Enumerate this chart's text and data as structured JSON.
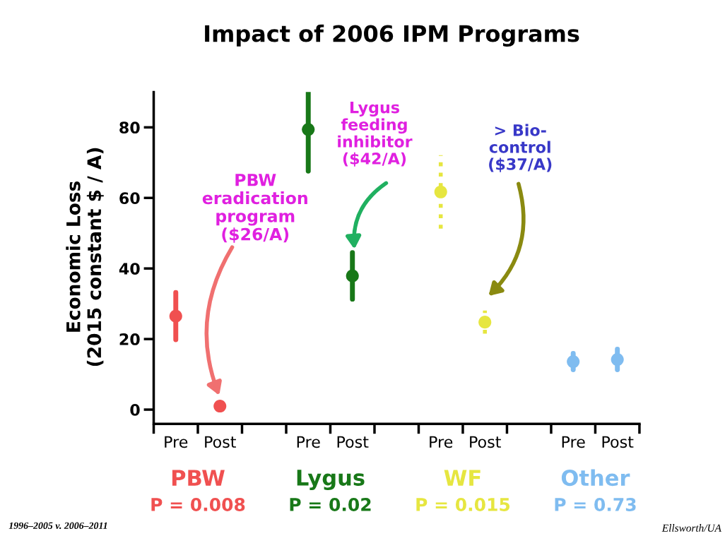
{
  "chart_data": {
    "type": "scatter",
    "title": "Impact of 2006 IPM Programs",
    "ylabel": "Economic Loss\n(2015 constant $ / A)",
    "categories": [
      "Pre",
      "Post",
      null,
      "Pre",
      "Post",
      null,
      "Pre",
      "Post",
      null,
      "Pre",
      "Post"
    ],
    "series": [
      {
        "name": "PBW",
        "color": "#f05050",
        "values": [
          26.5,
          1,
          null,
          null,
          null,
          null,
          null,
          null,
          null,
          null,
          null
        ],
        "errors": [
          6.7,
          null,
          null,
          null,
          null,
          null,
          null,
          null,
          null,
          null,
          null
        ],
        "line_style": "solid"
      },
      {
        "name": "Lygus",
        "color": "#187818",
        "values": [
          null,
          null,
          null,
          79.4,
          37.9,
          null,
          null,
          null,
          null,
          null,
          null
        ],
        "errors": [
          null,
          null,
          null,
          11.8,
          6.6,
          null,
          null,
          null,
          null,
          null,
          null
        ],
        "line_style": "solid"
      },
      {
        "name": "WF",
        "color": "#e6e640",
        "values": [
          null,
          null,
          null,
          null,
          null,
          null,
          61.7,
          24.8,
          null,
          null,
          null
        ],
        "errors": [
          null,
          null,
          null,
          null,
          null,
          null,
          10.4,
          3.3,
          null,
          null,
          null
        ],
        "line_style": "dotted"
      },
      {
        "name": "Other",
        "color": "#7fbcf0",
        "values": [
          null,
          null,
          null,
          null,
          null,
          null,
          null,
          null,
          null,
          13.6,
          14.2
        ],
        "errors": [
          null,
          null,
          null,
          null,
          null,
          null,
          null,
          null,
          null,
          2.3,
          2.9
        ],
        "line_style": "solid"
      }
    ],
    "ylim": [
      -3.5,
      90
    ],
    "yticks": [
      0,
      20,
      40,
      60,
      80
    ],
    "marker": "circle",
    "grid": false,
    "legend": false,
    "annotations": [
      "PBW\neradication\nprogram\n($26/A)",
      "Lygus\nfeeding\ninhibitor\n($42/A)",
      "> Bio-\ncontrol\n($37/A)",
      "P = 0.008",
      "P = 0.02",
      "P = 0.015",
      "P = 0.73",
      "1996–2005 v. 2006–2011",
      "Ellsworth/UA"
    ]
  }
}
